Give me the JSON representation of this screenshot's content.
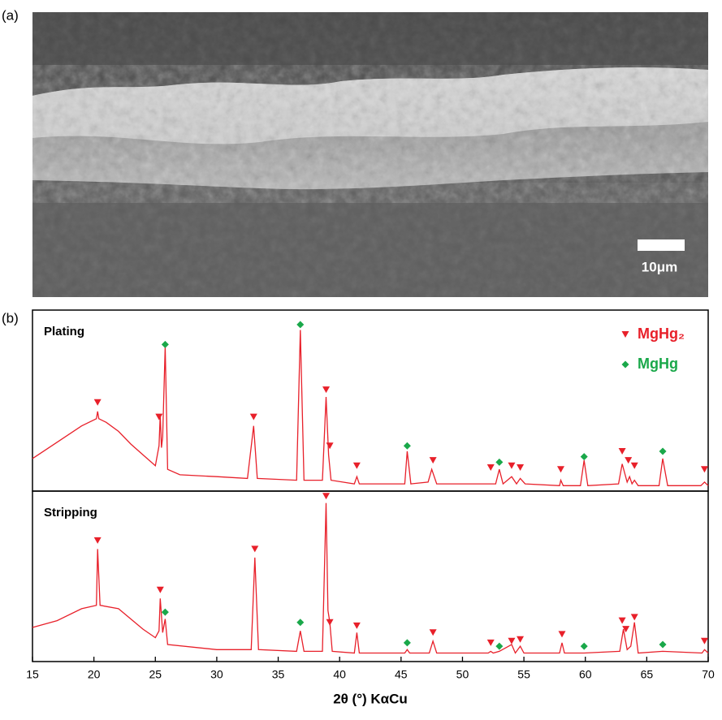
{
  "panels": {
    "a": {
      "label": "(a)",
      "scale_bar": "10μm"
    },
    "b": {
      "label": "(b)"
    }
  },
  "chart_data": [
    {
      "type": "line",
      "title": "Plating",
      "color": "#e8202a",
      "xlim": [
        15,
        70
      ],
      "ylim": [
        0,
        100
      ],
      "legend": "upper right",
      "x": [
        15,
        17,
        19,
        20.2,
        20.3,
        20.4,
        21,
        22,
        23,
        24,
        25,
        25.3,
        25.4,
        25.5,
        25.6,
        25.8,
        26,
        27,
        30,
        32.5,
        33,
        33.3,
        36.5,
        36.8,
        37.1,
        38.6,
        38.9,
        39.1,
        39.3,
        41.2,
        41.4,
        41.6,
        45.3,
        45.5,
        45.8,
        47.2,
        47.5,
        47.9,
        52.7,
        53,
        53.3,
        54,
        54.4,
        54.7,
        55.1,
        57.9,
        58,
        58.2,
        59.6,
        59.9,
        60.2,
        62.7,
        63,
        63.4,
        63.6,
        63.8,
        64,
        64.3,
        66,
        66.3,
        66.7,
        69.4,
        69.7,
        70
      ],
      "values": [
        18,
        27,
        36,
        40,
        44,
        40,
        38,
        33,
        26,
        20,
        14,
        25,
        42,
        24,
        30,
        80,
        12,
        9,
        8,
        7,
        36,
        7,
        6,
        89,
        6,
        6,
        52,
        20,
        6,
        4,
        8,
        4,
        4,
        22,
        4,
        5,
        12,
        4,
        4,
        12,
        4,
        8,
        4,
        7,
        4,
        3,
        6,
        3,
        3,
        17,
        3,
        4,
        15,
        5,
        8,
        4,
        6,
        3,
        3,
        18,
        3,
        3,
        5,
        3
      ],
      "series": [
        {
          "name": "MgHg₂",
          "color": "#e8202a",
          "marker": "triangle",
          "x": [
            20.3,
            25.3,
            33.0,
            38.9,
            39.2,
            41.4,
            47.6,
            52.3,
            54.0,
            54.7,
            58.0,
            63.0,
            63.5,
            64.0,
            69.7
          ],
          "values": [
            49,
            41,
            41,
            56,
            25,
            14,
            17,
            13,
            14,
            13,
            12,
            22,
            17,
            14,
            12
          ]
        },
        {
          "name": "MgHg",
          "color": "#1aa84a",
          "marker": "diamond",
          "x": [
            25.8,
            36.8,
            45.5,
            53.0,
            59.9,
            66.3
          ],
          "values": [
            81,
            92,
            25,
            16,
            19,
            22
          ]
        }
      ]
    },
    {
      "type": "line",
      "title": "Stripping",
      "color": "#e8202a",
      "xlim": [
        15,
        70
      ],
      "ylim": [
        0,
        100
      ],
      "xlabel": "2θ (°) KαCu",
      "xticks": [
        15,
        20,
        25,
        30,
        35,
        40,
        45,
        50,
        55,
        60,
        65,
        70
      ],
      "x": [
        15,
        17,
        19,
        20.2,
        20.3,
        20.5,
        22,
        23,
        24,
        25,
        25.3,
        25.4,
        25.6,
        25.8,
        26,
        30,
        32.8,
        33.1,
        33.4,
        36.5,
        36.8,
        37.1,
        38.6,
        38.9,
        39.05,
        39.2,
        39.4,
        41.2,
        41.4,
        41.6,
        45.3,
        45.5,
        45.7,
        47.3,
        47.6,
        47.9,
        52.1,
        52.3,
        52.5,
        53,
        54,
        54.3,
        54.7,
        55,
        57.9,
        58.1,
        58.3,
        59.9,
        62.8,
        63.1,
        63.4,
        63.7,
        64,
        64.3,
        66.3,
        69.5,
        69.7,
        70
      ],
      "values": [
        20,
        24,
        31,
        33,
        66,
        33,
        31,
        25,
        19,
        14,
        18,
        37,
        17,
        25,
        10,
        7,
        7,
        61,
        7,
        6,
        18,
        6,
        6,
        93,
        30,
        23,
        6,
        5,
        17,
        5,
        5,
        7,
        5,
        5,
        12,
        5,
        5,
        6,
        5,
        6,
        10,
        5,
        9,
        5,
        5,
        11,
        5,
        5,
        6,
        19,
        7,
        9,
        23,
        5,
        6,
        5,
        7,
        5
      ],
      "series": [
        {
          "color": "#e8202a",
          "marker": "triangle",
          "x": [
            20.3,
            25.4,
            33.1,
            38.9,
            39.2,
            41.4,
            47.6,
            52.3,
            54.0,
            54.7,
            58.1,
            63.0,
            63.3,
            64.0,
            69.7
          ],
          "values": [
            71,
            42,
            66,
            97,
            23,
            21,
            17,
            11,
            12,
            13,
            16,
            24,
            19,
            26,
            12
          ]
        },
        {
          "color": "#1aa84a",
          "marker": "diamond",
          "x": [
            25.8,
            36.8,
            45.5,
            53.0,
            59.9,
            66.3
          ],
          "values": [
            29,
            23,
            11,
            9,
            9,
            10
          ]
        }
      ]
    }
  ]
}
